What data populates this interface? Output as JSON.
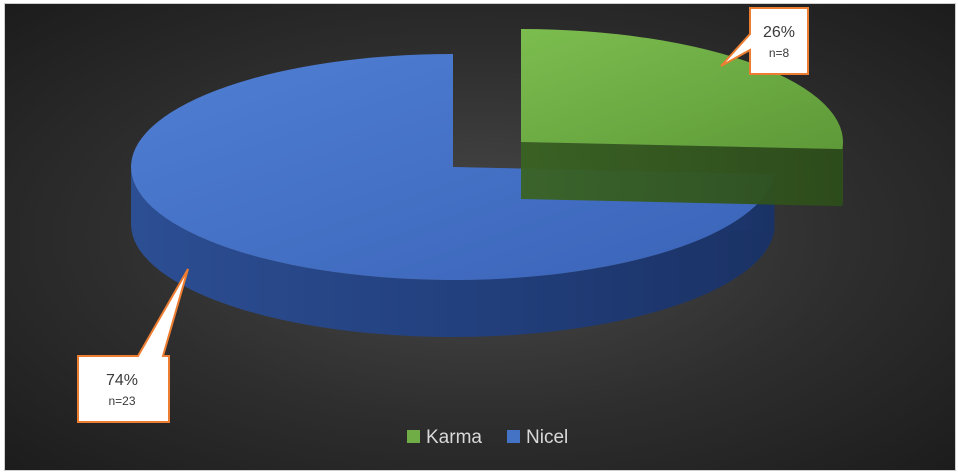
{
  "chart_data": {
    "type": "pie",
    "style": "3d-exploded",
    "categories": [
      "Karma",
      "Nicel"
    ],
    "values": [
      26,
      74
    ],
    "counts": [
      8,
      23
    ],
    "value_labels": [
      "26%",
      "74%"
    ],
    "count_labels": [
      "n=8",
      "n=23"
    ],
    "colors": [
      "#70ad47",
      "#4472c4"
    ],
    "legend": {
      "position": "bottom",
      "entries": [
        "Karma",
        "Nicel"
      ]
    },
    "title": ""
  }
}
